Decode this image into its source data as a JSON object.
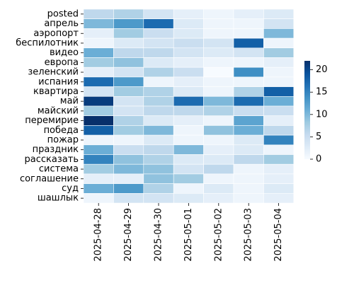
{
  "chart_data": {
    "type": "heatmap",
    "title": "",
    "xlabel": "",
    "ylabel": "",
    "x": [
      "2025-04-28",
      "2025-04-29",
      "2025-04-30",
      "2025-05-01",
      "2025-05-02",
      "2025-05-03",
      "2025-05-04"
    ],
    "y": [
      "posted",
      "апрель",
      "аэропорт",
      "беспилотник",
      "видео",
      "европа",
      "зеленский",
      "испания",
      "квартира",
      "май",
      "майский",
      "перемирие",
      "победа",
      "пожар",
      "праздник",
      "рассказать",
      "система",
      "соглашение",
      "суд",
      "шашлык"
    ],
    "values": [
      [
        6,
        7,
        4,
        2,
        1,
        2,
        3
      ],
      [
        10,
        13,
        17,
        3,
        1,
        1,
        4
      ],
      [
        2,
        8,
        5,
        3,
        1,
        1,
        10
      ],
      [
        1,
        3,
        4,
        5,
        4,
        18,
        1
      ],
      [
        11,
        6,
        6,
        4,
        3,
        4,
        8
      ],
      [
        8,
        9,
        3,
        2,
        1,
        1,
        2
      ],
      [
        2,
        4,
        7,
        5,
        0,
        14,
        1
      ],
      [
        17,
        13,
        1,
        2,
        1,
        1,
        1
      ],
      [
        4,
        8,
        7,
        3,
        1,
        7,
        18
      ],
      [
        21,
        4,
        7,
        17,
        10,
        17,
        11
      ],
      [
        8,
        4,
        6,
        6,
        7,
        5,
        5
      ],
      [
        22,
        7,
        3,
        2,
        1,
        12,
        2
      ],
      [
        18,
        8,
        10,
        1,
        9,
        11,
        6
      ],
      [
        1,
        1,
        3,
        1,
        1,
        3,
        15
      ],
      [
        11,
        5,
        6,
        10,
        2,
        3,
        1
      ],
      [
        15,
        9,
        7,
        3,
        3,
        6,
        8
      ],
      [
        8,
        10,
        9,
        4,
        6,
        1,
        2
      ],
      [
        2,
        2,
        9,
        8,
        1,
        1,
        2
      ],
      [
        11,
        13,
        7,
        1,
        3,
        1,
        3
      ],
      [
        1,
        4,
        4,
        3,
        2,
        1,
        2
      ]
    ],
    "colorbar": {
      "ticks": [
        0,
        5,
        10,
        15,
        20
      ],
      "min": 0,
      "max": 22
    },
    "colormap": "Blues",
    "grid": false,
    "legend_position": "right"
  },
  "colors": {
    "low": "#f7fbff",
    "high": "#08306b",
    "cell_border": "#ffffff"
  }
}
